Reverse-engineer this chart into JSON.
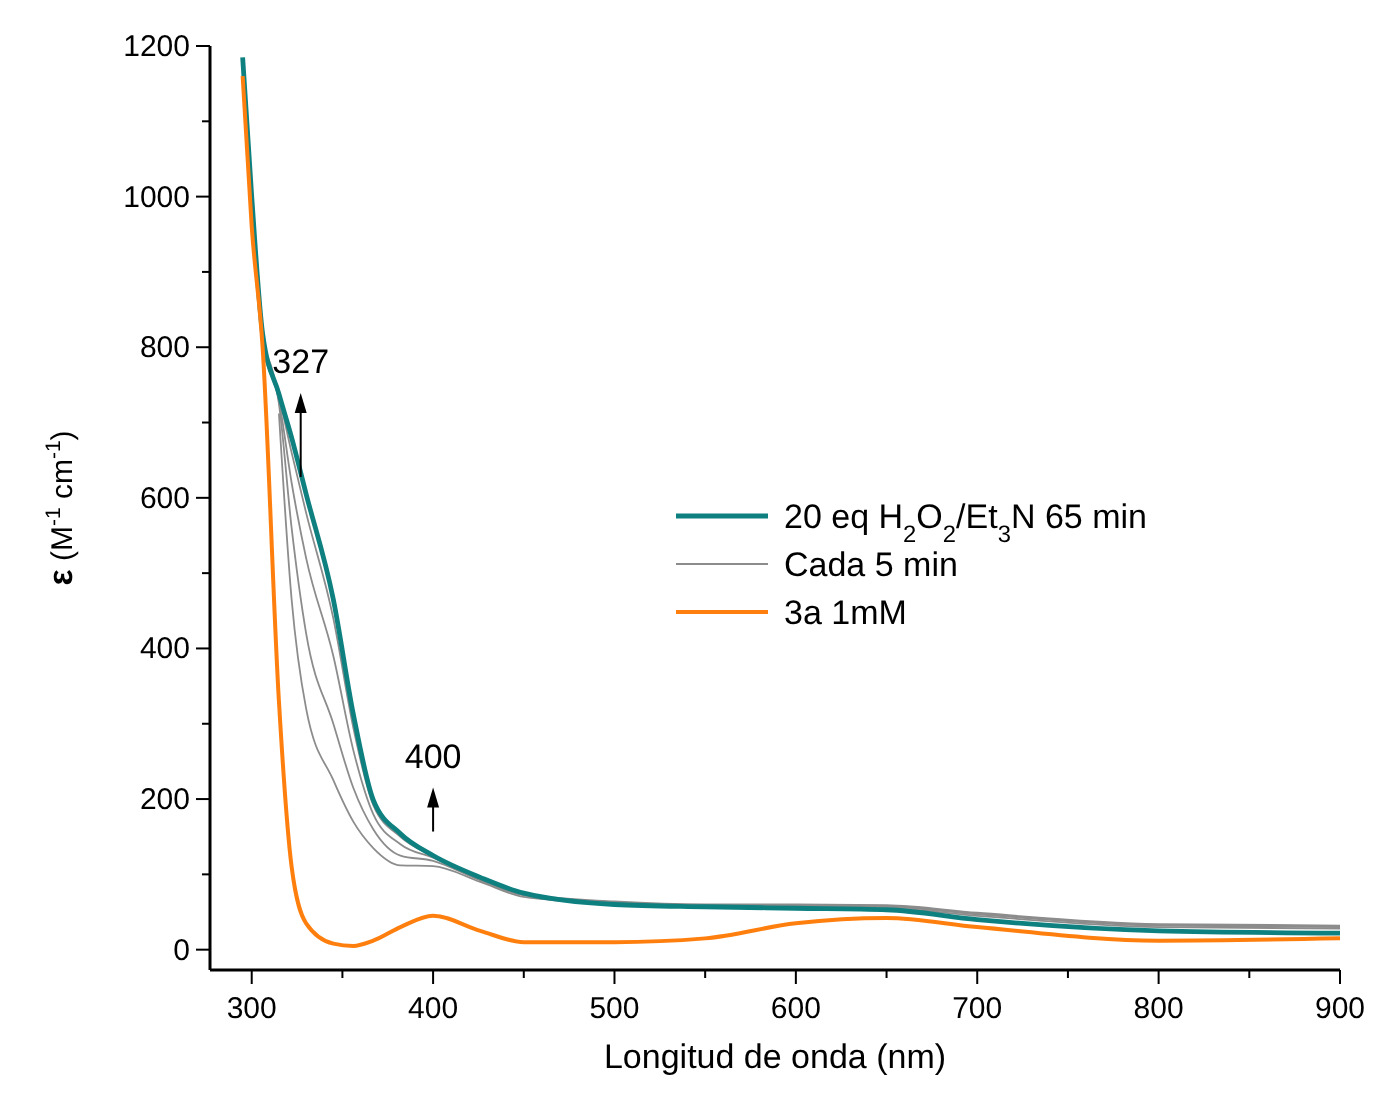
{
  "chart_data": {
    "type": "line",
    "xlabel": "Longitud de onda (nm)",
    "ylabel": "ε (M$^{-1}$ cm$^{-1}$)",
    "x": [
      295,
      300,
      306,
      315,
      322,
      330,
      345,
      356,
      367,
      382,
      400,
      426,
      450,
      500,
      550,
      600,
      650,
      700,
      800,
      900
    ],
    "series": [
      {
        "color": "#8c8c8c",
        "values": [
          null,
          null,
          null,
          712,
          465,
          320,
          225,
          170,
          135,
          112,
          111,
          90,
          70,
          61,
          58,
          56,
          55,
          45,
          30,
          28
        ]
      },
      {
        "color": "#8c8c8c",
        "values": [
          null,
          null,
          800,
          725,
          560,
          420,
          300,
          215,
          160,
          125,
          118,
          92,
          72,
          62,
          59,
          58,
          57,
          47,
          32,
          30
        ]
      },
      {
        "color": "#8c8c8c",
        "values": [
          null,
          994,
          808,
          730,
          620,
          520,
          390,
          265,
          180,
          140,
          122,
          93,
          73,
          63,
          59,
          59,
          58,
          48,
          33,
          31
        ]
      },
      {
        "name": "20 eq H$_{2}$O$_{2}$/Et$_{3}$N 65 min",
        "color": "#0f8080",
        "values": [
          1185,
          1000,
          818,
          738,
          680,
          605,
          465,
          313,
          199,
          154,
          125,
          96,
          75,
          60,
          57,
          55,
          53,
          40,
          25,
          22
        ]
      },
      {
        "name": "Cada 5 min",
        "color": "#8c8c8c",
        "values": [
          1182,
          998,
          815,
          735,
          660,
          580,
          440,
          295,
          192,
          150,
          124,
          94,
          74,
          64,
          60,
          60,
          59,
          49,
          34,
          32
        ]
      },
      {
        "name": "3a 1mM",
        "color": "#ff7f0e",
        "values": [
          1160,
          960,
          800,
          330,
          110,
          35,
          8,
          5,
          12,
          30,
          45,
          25,
          10,
          10,
          15,
          35,
          42,
          30,
          12,
          15
        ]
      }
    ],
    "xlim": [
      277,
      900
    ],
    "ylim": [
      -27,
      1200
    ],
    "xticks": [
      300,
      {
        "value": 350,
        "label": null
      },
      400,
      {
        "value": 450,
        "label": null
      },
      500,
      {
        "value": 550,
        "label": null
      },
      600,
      {
        "value": 650,
        "label": null
      },
      700,
      {
        "value": 750,
        "label": null
      },
      800,
      {
        "value": 850,
        "label": null
      },
      900
    ],
    "yticks": [
      0,
      {
        "value": 100,
        "label": null
      },
      200,
      {
        "value": 300,
        "label": null
      },
      400,
      {
        "value": 500,
        "label": null
      },
      600,
      {
        "value": 700,
        "label": null
      },
      800,
      {
        "value": 900,
        "label": null
      },
      1000,
      {
        "value": 1100,
        "label": null
      },
      1200
    ],
    "annotations": [
      {
        "text": "327",
        "x": 327,
        "y": 633
      },
      {
        "text": "400",
        "x": 400,
        "y": 125
      }
    ],
    "legend": "right",
    "grid": false,
    "marker": "none",
    "line_style": "solid"
  }
}
